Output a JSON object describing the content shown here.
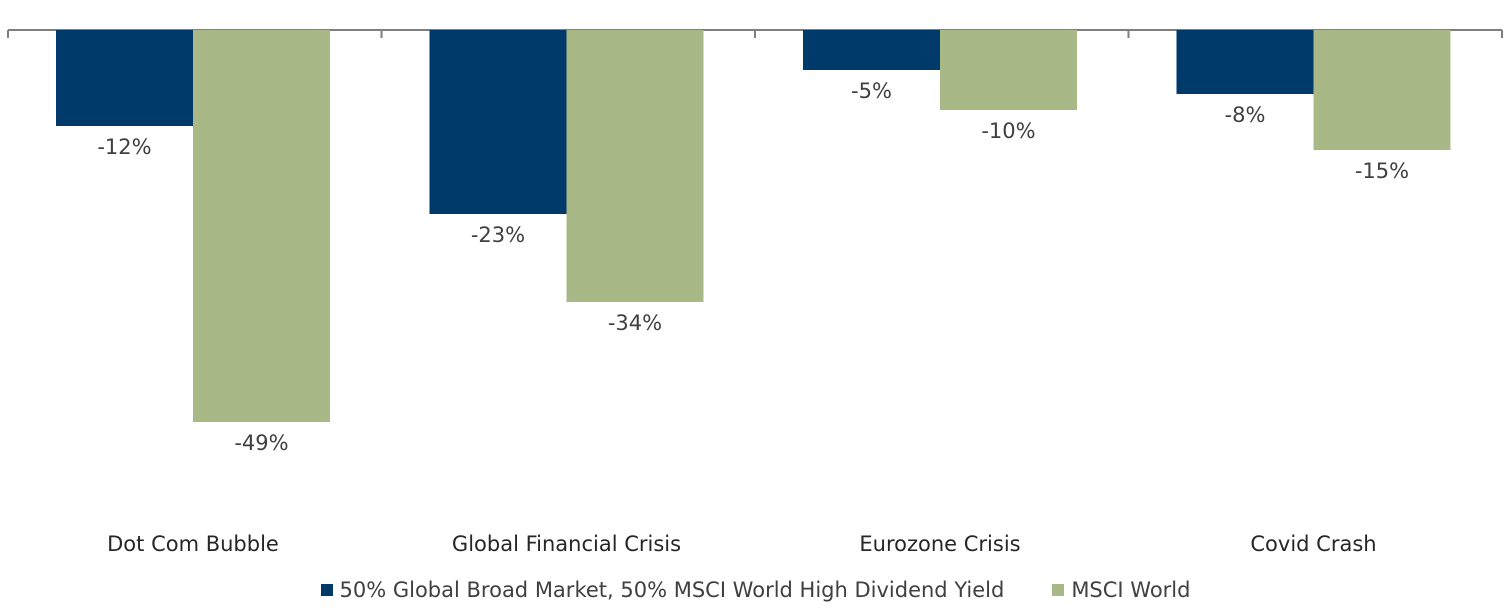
{
  "chart_data": {
    "type": "bar",
    "categories": [
      "Dot Com Bubble",
      "Global Financial Crisis",
      "Eurozone Crisis",
      "Covid Crash"
    ],
    "series": [
      {
        "name": "50% Global Broad Market, 50% MSCI World High Dividend Yield",
        "values": [
          -12,
          -23,
          -5,
          -8
        ],
        "labels": [
          "-12%",
          "-23%",
          "-5%",
          "-8%"
        ],
        "color": "#003A6A"
      },
      {
        "name": "MSCI World",
        "values": [
          -49,
          -34,
          -10,
          -15
        ],
        "labels": [
          "-49%",
          "-34%",
          "-10%",
          "-15%"
        ],
        "color": "#A9B887"
      }
    ],
    "ylim": [
      -49,
      0
    ],
    "grid": false,
    "legend_position": "bottom"
  }
}
